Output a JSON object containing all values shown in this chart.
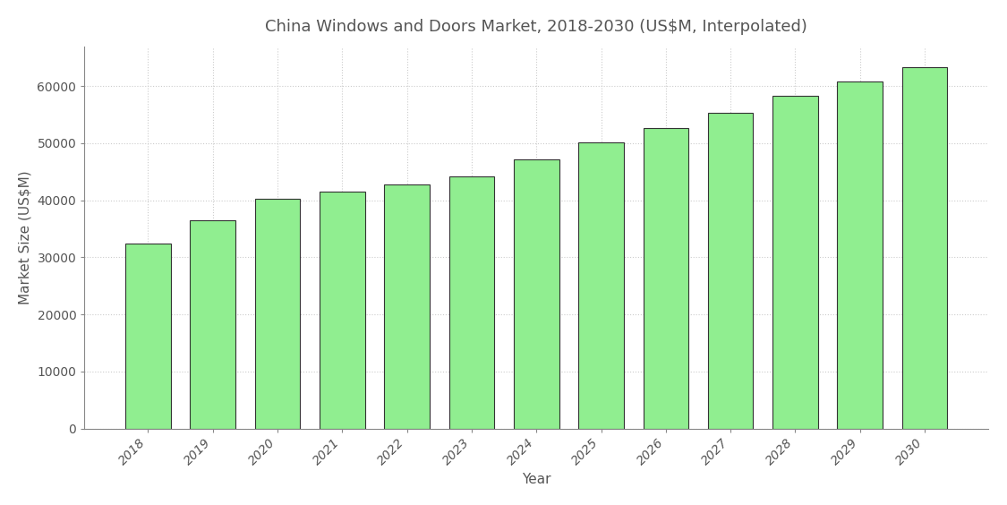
{
  "title": "China Windows and Doors Market, 2018-2030 (US$M, Interpolated)",
  "xlabel": "Year",
  "ylabel": "Market Size (US$M)",
  "years": [
    2018,
    2019,
    2020,
    2021,
    2022,
    2023,
    2024,
    2025,
    2026,
    2027,
    2028,
    2029,
    2030
  ],
  "values": [
    32476.3,
    36500,
    40300,
    41500,
    42800,
    44200,
    47200,
    50200,
    52700,
    55300,
    58300,
    60800,
    63300
  ],
  "bar_color": "#90EE90",
  "bar_edge_color": "#333333",
  "bar_edge_width": 0.8,
  "background_color": "#ffffff",
  "grid_color": "#cccccc",
  "title_fontsize": 13,
  "axis_label_fontsize": 11,
  "tick_fontsize": 10,
  "ylim": [
    0,
    67000
  ],
  "yticks": [
    0,
    10000,
    20000,
    30000,
    40000,
    50000,
    60000
  ],
  "title_color": "#555555",
  "tick_label_color": "#555555",
  "spine_color": "#888888"
}
